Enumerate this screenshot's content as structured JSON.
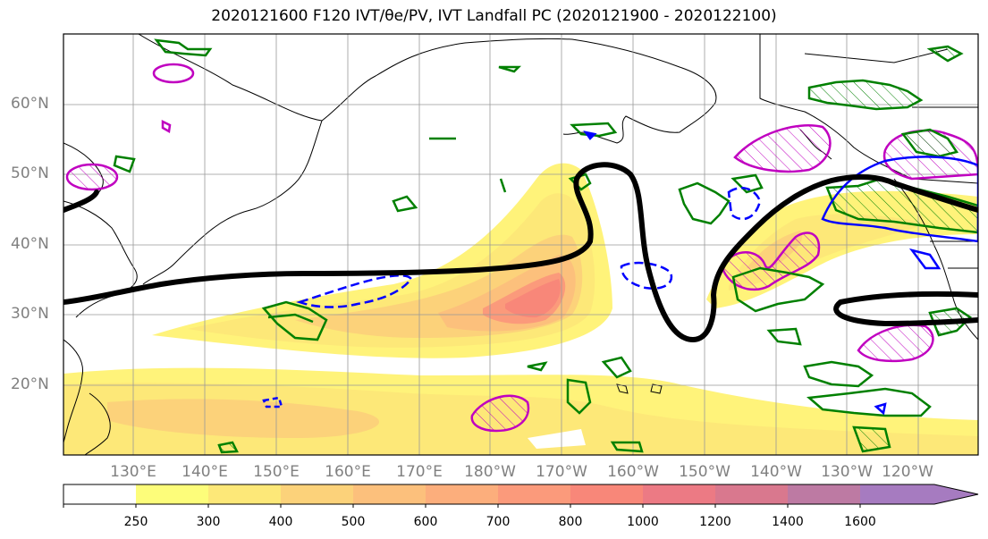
{
  "title": "2020121600 F120 IVT/θe/PV, IVT Landfall PC (2020121900 - 2020122100)",
  "lat_labels": [
    "60°N",
    "50°N",
    "40°N",
    "30°N",
    "20°N"
  ],
  "lon_labels": [
    "130°E",
    "140°E",
    "150°E",
    "160°E",
    "170°E",
    "180°W",
    "170°W",
    "160°W",
    "150°W",
    "140°W",
    "130°W",
    "120°W"
  ],
  "colorbar": {
    "ticks": [
      "250",
      "300",
      "400",
      "500",
      "600",
      "700",
      "800",
      "1000",
      "1200",
      "1400",
      "1600"
    ],
    "colors": [
      "#ffffff",
      "#fdfd7a",
      "#fde878",
      "#fcd27a",
      "#fcc07c",
      "#fcae7c",
      "#fb9a7b",
      "#f88779",
      "#ec7a84",
      "#d9788e",
      "#bd7aa3",
      "#a67bc0"
    ]
  },
  "colors": {
    "ivt_light": "#fff37a",
    "ivt_mid": "#fcc47a",
    "ivt_high": "#f98a78",
    "theta_e_contour": "#000000",
    "pv_positive": "#008000",
    "pv_negative": "#0000ff",
    "landfall_pc": "#c000c0",
    "grid": "#999999"
  }
}
